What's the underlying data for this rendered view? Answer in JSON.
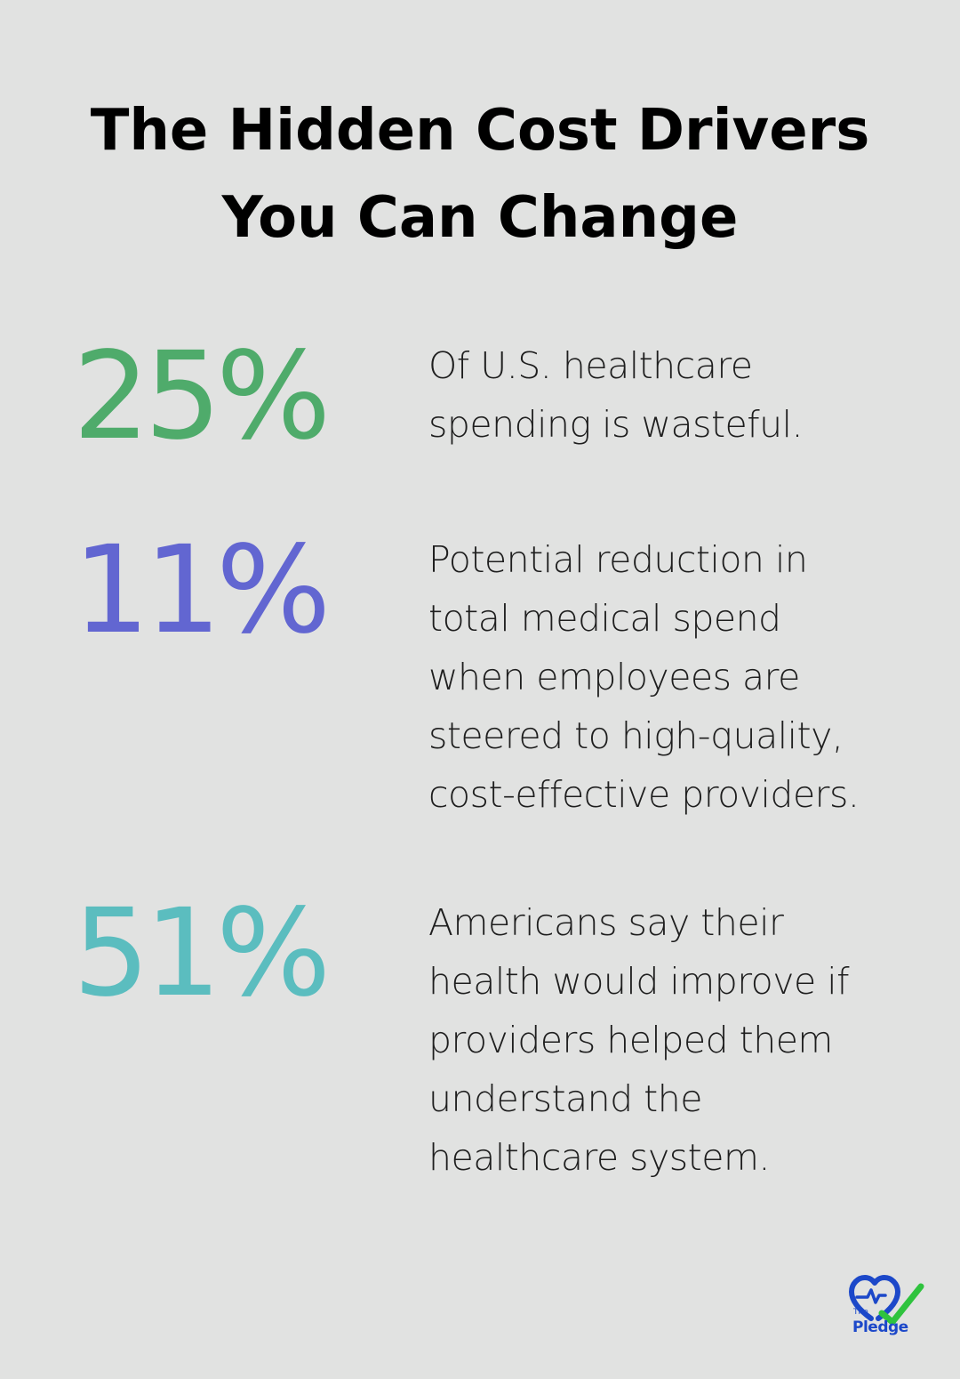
{
  "title": {
    "line1": "The Hidden Cost Drivers",
    "line2": "You Can Change"
  },
  "stats": [
    {
      "value": "25%",
      "color": "#4fab6b",
      "lines": [
        "Of U.S. healthcare",
        "spending is wasteful."
      ]
    },
    {
      "value": "11%",
      "color": "#6266d1",
      "lines": [
        "Potential reduction in",
        "total medical spend",
        "when employees are",
        "steered to high-quality,",
        "cost-effective providers."
      ]
    },
    {
      "value": "51%",
      "color": "#5bbdbf",
      "lines": [
        "Americans say their",
        "health would improve if",
        "providers helped them",
        "understand the",
        "healthcare system."
      ]
    }
  ],
  "logo": {
    "small_text": "The",
    "text": "Pledge",
    "icon": "heart-check-icon",
    "colors": {
      "heart": "#1c48c9",
      "check": "#2fc33e"
    }
  }
}
